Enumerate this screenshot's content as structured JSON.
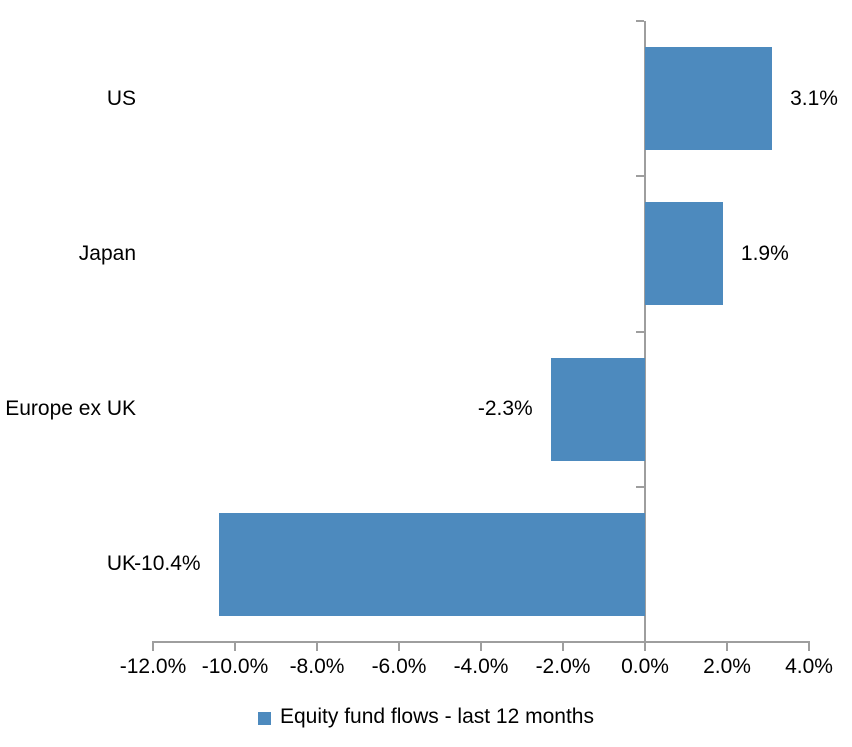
{
  "chart_data": {
    "type": "bar",
    "orientation": "horizontal",
    "title": "",
    "categories": [
      "US",
      "Japan",
      "Europe ex UK",
      "UK"
    ],
    "series": [
      {
        "name": "Equity fund flows - last 12 months",
        "values": [
          3.1,
          1.9,
          -2.3,
          -10.4
        ]
      }
    ],
    "data_labels": [
      "3.1%",
      "1.9%",
      "-2.3%",
      "-10.4%"
    ],
    "xlabel": "",
    "ylabel": "",
    "xlim": [
      -12,
      4
    ],
    "x_ticks": [
      -12,
      -10,
      -8,
      -6,
      -4,
      -2,
      0,
      2,
      4
    ],
    "x_tick_labels": [
      "-12.0%",
      "-10.0%",
      "-8.0%",
      "-6.0%",
      "-4.0%",
      "-2.0%",
      "0.0%",
      "2.0%",
      "4.0%"
    ],
    "grid": false,
    "legend": {
      "position": "bottom",
      "label": "Equity fund flows - last 12 months"
    },
    "colors": {
      "bar": "#4D8ABE",
      "axis": "#9E9E9E",
      "text": "#000000",
      "background": "#FFFFFF"
    }
  }
}
